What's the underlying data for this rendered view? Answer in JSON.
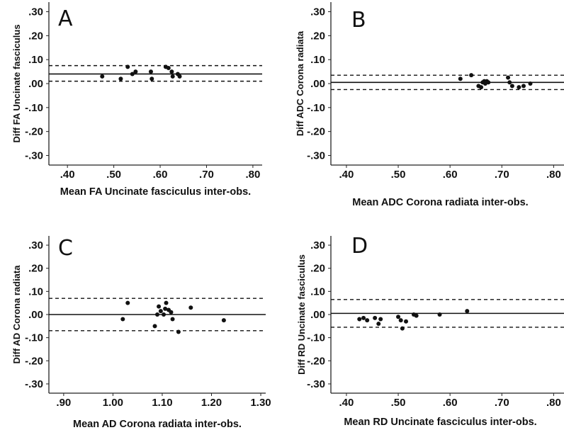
{
  "chart_data": [
    {
      "type": "scatter",
      "panel_label": "A",
      "xlabel": "Mean FA Uncinate fasciculus inter-obs.",
      "ylabel": "Diff FA Uncinate fasciculus",
      "xlim": [
        0.36,
        0.82
      ],
      "ylim": [
        -0.34,
        0.34
      ],
      "xticks": [
        0.4,
        0.5,
        0.6,
        0.7,
        0.8
      ],
      "xtick_labels": [
        ".40",
        ".50",
        ".60",
        ".70",
        ".80"
      ],
      "yticks": [
        -0.3,
        -0.2,
        -0.1,
        0.0,
        0.1,
        0.2,
        0.3
      ],
      "ytick_labels": [
        "-.30",
        "-.20",
        "-.10",
        ".00",
        ".10",
        ".20",
        ".30"
      ],
      "mean_line": 0.04,
      "limits_of_agreement": [
        0.01,
        0.075
      ],
      "points": [
        {
          "x": 0.475,
          "y": 0.03
        },
        {
          "x": 0.515,
          "y": 0.02
        },
        {
          "x": 0.53,
          "y": 0.07
        },
        {
          "x": 0.54,
          "y": 0.04
        },
        {
          "x": 0.547,
          "y": 0.05
        },
        {
          "x": 0.58,
          "y": 0.05
        },
        {
          "x": 0.582,
          "y": 0.02
        },
        {
          "x": 0.612,
          "y": 0.07
        },
        {
          "x": 0.618,
          "y": 0.065
        },
        {
          "x": 0.625,
          "y": 0.05
        },
        {
          "x": 0.627,
          "y": 0.03
        },
        {
          "x": 0.638,
          "y": 0.04
        },
        {
          "x": 0.642,
          "y": 0.03
        }
      ]
    },
    {
      "type": "scatter",
      "panel_label": "B",
      "xlabel": "Mean ADC Corona radiata inter-obs.",
      "ylabel": "Diff ADC Corona radiata",
      "xlim": [
        0.37,
        0.82
      ],
      "ylim": [
        -0.34,
        0.34
      ],
      "xticks": [
        0.4,
        0.5,
        0.6,
        0.7,
        0.8
      ],
      "xtick_labels": [
        ".40",
        ".50",
        ".60",
        ".70",
        ".80"
      ],
      "yticks": [
        -0.3,
        -0.2,
        -0.1,
        0.0,
        0.1,
        0.2,
        0.3
      ],
      "ytick_labels": [
        "-.30",
        "-.20",
        "-.10",
        ".00",
        ".10",
        ".20",
        ".30"
      ],
      "mean_line": 0.005,
      "limits_of_agreement": [
        -0.025,
        0.035
      ],
      "points": [
        {
          "x": 0.62,
          "y": 0.02
        },
        {
          "x": 0.641,
          "y": 0.035
        },
        {
          "x": 0.655,
          "y": -0.01
        },
        {
          "x": 0.66,
          "y": -0.015
        },
        {
          "x": 0.663,
          "y": 0.005
        },
        {
          "x": 0.666,
          "y": 0.01
        },
        {
          "x": 0.668,
          "y": 0.0
        },
        {
          "x": 0.671,
          "y": 0.01
        },
        {
          "x": 0.674,
          "y": 0.005
        },
        {
          "x": 0.712,
          "y": 0.025
        },
        {
          "x": 0.715,
          "y": 0.005
        },
        {
          "x": 0.72,
          "y": -0.01
        },
        {
          "x": 0.733,
          "y": -0.015
        },
        {
          "x": 0.742,
          "y": -0.01
        },
        {
          "x": 0.755,
          "y": 0.0
        }
      ]
    },
    {
      "type": "scatter",
      "panel_label": "C",
      "xlabel": "Mean AD Corona radiata inter-obs.",
      "ylabel": "Diff AD Corona radiata",
      "xlim": [
        0.87,
        1.31
      ],
      "ylim": [
        -0.34,
        0.34
      ],
      "xticks": [
        0.9,
        1.0,
        1.1,
        1.2,
        1.3
      ],
      "xtick_labels": [
        ".90",
        "1.00",
        "1.10",
        "1.20",
        "1.30"
      ],
      "yticks": [
        -0.3,
        -0.2,
        -0.1,
        0.0,
        0.1,
        0.2,
        0.3
      ],
      "ytick_labels": [
        "-.30",
        "-.20",
        "-.10",
        ".00",
        ".10",
        ".20",
        ".30"
      ],
      "mean_line": 0.0,
      "limits_of_agreement": [
        -0.07,
        0.07
      ],
      "points": [
        {
          "x": 1.02,
          "y": -0.02
        },
        {
          "x": 1.03,
          "y": 0.05
        },
        {
          "x": 1.085,
          "y": -0.05
        },
        {
          "x": 1.09,
          "y": 0.0
        },
        {
          "x": 1.093,
          "y": 0.035
        },
        {
          "x": 1.097,
          "y": 0.015
        },
        {
          "x": 1.103,
          "y": 0.0
        },
        {
          "x": 1.106,
          "y": 0.025
        },
        {
          "x": 1.108,
          "y": 0.05
        },
        {
          "x": 1.113,
          "y": 0.02
        },
        {
          "x": 1.118,
          "y": 0.01
        },
        {
          "x": 1.121,
          "y": -0.02
        },
        {
          "x": 1.133,
          "y": -0.075
        },
        {
          "x": 1.158,
          "y": 0.03
        },
        {
          "x": 1.225,
          "y": -0.025
        }
      ]
    },
    {
      "type": "scatter",
      "panel_label": "D",
      "xlabel": "Mean RD Uncinate fasciculus inter-obs.",
      "ylabel": "Diff RD Uncinate fasciculus",
      "xlim": [
        0.37,
        0.82
      ],
      "ylim": [
        -0.34,
        0.34
      ],
      "xticks": [
        0.4,
        0.5,
        0.6,
        0.7,
        0.8
      ],
      "xtick_labels": [
        ".40",
        ".50",
        ".60",
        ".70",
        ".80"
      ],
      "yticks": [
        -0.3,
        -0.2,
        -0.1,
        0.0,
        0.1,
        0.2,
        0.3
      ],
      "ytick_labels": [
        "-.30",
        "-.20",
        "-.10",
        ".00",
        ".10",
        ".20",
        ".30"
      ],
      "mean_line": 0.005,
      "limits_of_agreement": [
        -0.055,
        0.065
      ],
      "points": [
        {
          "x": 0.425,
          "y": -0.02
        },
        {
          "x": 0.433,
          "y": -0.015
        },
        {
          "x": 0.44,
          "y": -0.025
        },
        {
          "x": 0.455,
          "y": -0.015
        },
        {
          "x": 0.462,
          "y": -0.04
        },
        {
          "x": 0.466,
          "y": -0.02
        },
        {
          "x": 0.5,
          "y": -0.01
        },
        {
          "x": 0.505,
          "y": -0.025
        },
        {
          "x": 0.508,
          "y": -0.06
        },
        {
          "x": 0.515,
          "y": -0.03
        },
        {
          "x": 0.53,
          "y": 0.0
        },
        {
          "x": 0.535,
          "y": -0.005
        },
        {
          "x": 0.58,
          "y": 0.0
        },
        {
          "x": 0.633,
          "y": 0.015
        }
      ]
    }
  ]
}
